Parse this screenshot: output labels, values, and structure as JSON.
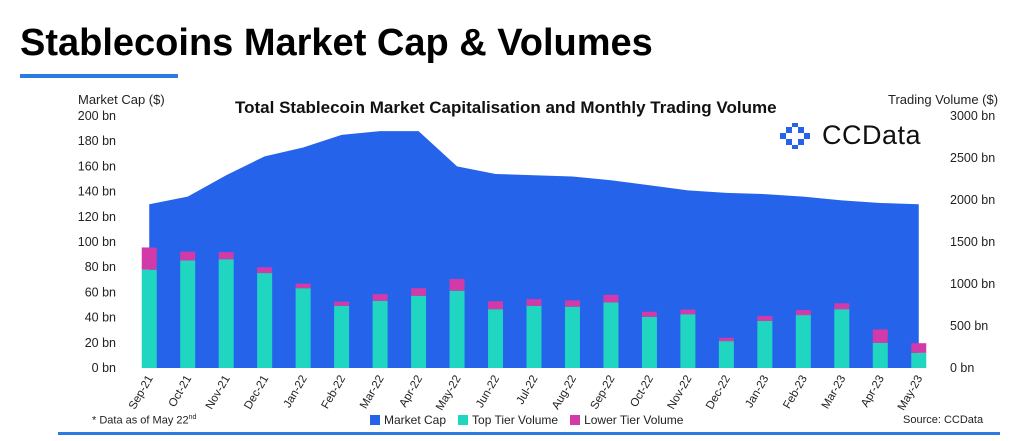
{
  "page": {
    "title": "Stablecoins Market Cap & Volumes",
    "footnote_prefix": "* Data as of May 22",
    "footnote_suffix": "nd",
    "source": "Source: CCData",
    "brand": "CCData"
  },
  "colors": {
    "market_cap": "#2563eb",
    "top_tier": "#21d6c0",
    "lower_tier": "#d13aa8",
    "accent_rule": "#2d7be0"
  },
  "chart_data": {
    "type": "bar",
    "title": "Total Stablecoin Market Capitalisation and Monthly Trading Volume",
    "categories": [
      "Sep-21",
      "Oct-21",
      "Nov-21",
      "Dec-21",
      "Jan-22",
      "Feb-22",
      "Mar-22",
      "Apr-22",
      "May-22",
      "Jun-22",
      "Jul-22",
      "Aug-22",
      "Sep-22",
      "Oct-22",
      "Nov-22",
      "Dec-22",
      "Jan-23",
      "Feb-23",
      "Mar-23",
      "Apr-23",
      "May-23"
    ],
    "left_axis": {
      "label": "Market Cap ($)",
      "ylim": [
        0,
        200
      ],
      "ticks": [
        0,
        20,
        40,
        60,
        80,
        100,
        120,
        140,
        160,
        180,
        200
      ],
      "tick_labels": [
        "0 bn",
        "20 bn",
        "40 bn",
        "60 bn",
        "80 bn",
        "100 bn",
        "120 bn",
        "140 bn",
        "160 bn",
        "180 bn",
        "200 bn"
      ]
    },
    "right_axis": {
      "label": "Trading Volume ($)",
      "ylim": [
        0,
        3000
      ],
      "ticks": [
        0,
        500,
        1000,
        1500,
        2000,
        2500,
        3000
      ],
      "tick_labels": [
        "0 bn",
        "500 bn",
        "1000 bn",
        "1500 bn",
        "2000 bn",
        "2500 bn",
        "3000 bn"
      ]
    },
    "area_series": {
      "name": "Market Cap",
      "axis": "left",
      "x": [
        0,
        1,
        2,
        3,
        4,
        5,
        6,
        7,
        8,
        9,
        10,
        11,
        12,
        13,
        14,
        15,
        16,
        17,
        18,
        19,
        20
      ],
      "values": [
        130,
        136,
        153,
        168,
        175,
        185,
        188,
        188,
        160,
        154,
        153,
        152,
        149,
        145,
        141,
        139,
        138,
        136,
        133,
        131,
        130
      ]
    },
    "bar_series": [
      {
        "name": "Top Tier Volume",
        "axis": "right",
        "values": [
          1170,
          1280,
          1295,
          1130,
          950,
          740,
          800,
          860,
          920,
          700,
          740,
          730,
          780,
          610,
          640,
          320,
          560,
          630,
          700,
          300,
          180
        ]
      },
      {
        "name": "Lower Tier Volume",
        "axis": "right",
        "values": [
          265,
          105,
          85,
          70,
          55,
          50,
          80,
          90,
          140,
          95,
          80,
          75,
          90,
          60,
          55,
          40,
          60,
          60,
          70,
          160,
          115
        ]
      }
    ],
    "legend": [
      "Market Cap",
      "Top Tier Volume",
      "Lower Tier Volume"
    ],
    "legend_position": "bottom",
    "grid": false
  }
}
